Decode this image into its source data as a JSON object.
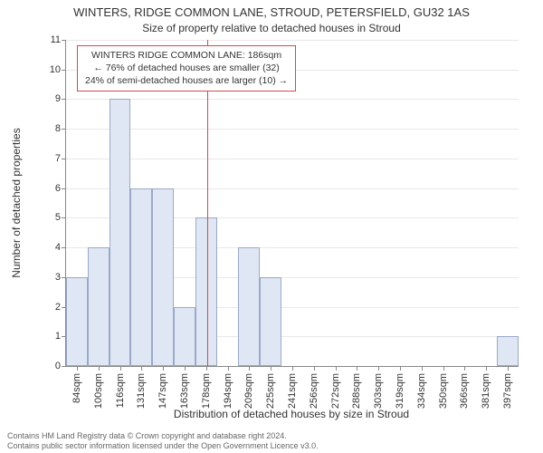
{
  "title_main": "WINTERS, RIDGE COMMON LANE, STROUD, PETERSFIELD, GU32 1AS",
  "title_sub": "Size of property relative to detached houses in Stroud",
  "y_label": "Number of detached properties",
  "x_label": "Distribution of detached houses by size in Stroud",
  "chart": {
    "type": "histogram",
    "y_min": 0,
    "y_max": 11,
    "y_tick_step": 1,
    "x_labels": [
      "84sqm",
      "100sqm",
      "116sqm",
      "131sqm",
      "147sqm",
      "163sqm",
      "178sqm",
      "194sqm",
      "209sqm",
      "225sqm",
      "241sqm",
      "256sqm",
      "272sqm",
      "288sqm",
      "303sqm",
      "319sqm",
      "334sqm",
      "350sqm",
      "366sqm",
      "381sqm",
      "397sqm"
    ],
    "values": [
      3,
      4,
      9,
      6,
      6,
      2,
      5,
      0,
      4,
      3,
      0,
      0,
      0,
      0,
      0,
      0,
      0,
      0,
      0,
      0,
      1
    ],
    "bar_fill": "#dfe7f5",
    "bar_stroke": "#9aa9c7",
    "bar_width_ratio": 1.0,
    "grid_color": "#e8e8e8",
    "axis_color": "#888888",
    "background_color": "#ffffff",
    "ref_line_value_index": 6.55,
    "ref_line_color": "#d34a4a"
  },
  "annotation": {
    "line1": "WINTERS RIDGE COMMON LANE: 186sqm",
    "line2": "← 76% of detached houses are smaller (32)",
    "line3": "24% of semi-detached houses are larger (10) →",
    "border_color": "#d34a4a",
    "fontsize": 10.5
  },
  "footer_line1": "Contains HM Land Registry data © Crown copyright and database right 2024.",
  "footer_line2": "Contains public sector information licensed under the Open Government Licence v3.0."
}
